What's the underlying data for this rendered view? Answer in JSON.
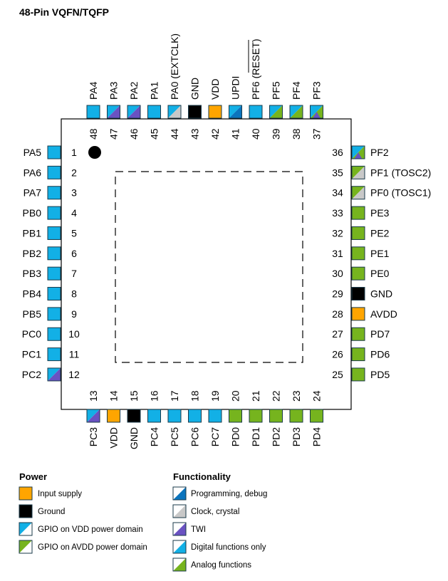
{
  "title": "48-Pin VQFN/TQFP",
  "colors": {
    "gpio_vdd": "#12b0e6",
    "twi": "#6a52c2",
    "clock": "#c8c8c8",
    "prog": "#0b74bd",
    "analog": "#76b41e",
    "supply": "#ffa500",
    "ground": "#000000",
    "white": "#ffffff"
  },
  "pins": {
    "left": [
      {
        "num": "1",
        "name": "PA5",
        "fill": [
          "gpio_vdd"
        ]
      },
      {
        "num": "2",
        "name": "PA6",
        "fill": [
          "gpio_vdd"
        ]
      },
      {
        "num": "3",
        "name": "PA7",
        "fill": [
          "gpio_vdd"
        ]
      },
      {
        "num": "4",
        "name": "PB0",
        "fill": [
          "gpio_vdd"
        ]
      },
      {
        "num": "5",
        "name": "PB1",
        "fill": [
          "gpio_vdd"
        ]
      },
      {
        "num": "6",
        "name": "PB2",
        "fill": [
          "gpio_vdd"
        ]
      },
      {
        "num": "7",
        "name": "PB3",
        "fill": [
          "gpio_vdd"
        ]
      },
      {
        "num": "8",
        "name": "PB4",
        "fill": [
          "gpio_vdd"
        ]
      },
      {
        "num": "9",
        "name": "PB5",
        "fill": [
          "gpio_vdd"
        ]
      },
      {
        "num": "10",
        "name": "PC0",
        "fill": [
          "gpio_vdd"
        ]
      },
      {
        "num": "11",
        "name": "PC1",
        "fill": [
          "gpio_vdd"
        ]
      },
      {
        "num": "12",
        "name": "PC2",
        "fill": [
          "gpio_vdd",
          "twi"
        ]
      }
    ],
    "bottom": [
      {
        "num": "13",
        "name": "PC3",
        "fill": [
          "gpio_vdd",
          "twi"
        ]
      },
      {
        "num": "14",
        "name": "VDD",
        "fill": [
          "supply"
        ]
      },
      {
        "num": "15",
        "name": "GND",
        "fill": [
          "ground"
        ]
      },
      {
        "num": "16",
        "name": "PC4",
        "fill": [
          "gpio_vdd"
        ]
      },
      {
        "num": "17",
        "name": "PC5",
        "fill": [
          "gpio_vdd"
        ]
      },
      {
        "num": "18",
        "name": "PC6",
        "fill": [
          "gpio_vdd"
        ]
      },
      {
        "num": "19",
        "name": "PC7",
        "fill": [
          "gpio_vdd"
        ]
      },
      {
        "num": "20",
        "name": "PD0",
        "fill": [
          "analog"
        ]
      },
      {
        "num": "21",
        "name": "PD1",
        "fill": [
          "analog"
        ]
      },
      {
        "num": "22",
        "name": "PD2",
        "fill": [
          "analog"
        ]
      },
      {
        "num": "23",
        "name": "PD3",
        "fill": [
          "analog"
        ]
      },
      {
        "num": "24",
        "name": "PD4",
        "fill": [
          "analog"
        ]
      }
    ],
    "right": [
      {
        "num": "36",
        "name": "PF2",
        "fill": [
          "gpio_vdd",
          "analog",
          "twi"
        ]
      },
      {
        "num": "35",
        "name": "PF1 (TOSC2)",
        "fill": [
          "analog",
          "clock"
        ]
      },
      {
        "num": "34",
        "name": "PF0 (TOSC1)",
        "fill": [
          "analog",
          "clock"
        ]
      },
      {
        "num": "33",
        "name": "PE3",
        "fill": [
          "analog"
        ]
      },
      {
        "num": "32",
        "name": "PE2",
        "fill": [
          "analog"
        ]
      },
      {
        "num": "31",
        "name": "PE1",
        "fill": [
          "analog"
        ]
      },
      {
        "num": "30",
        "name": "PE0",
        "fill": [
          "analog"
        ]
      },
      {
        "num": "29",
        "name": "GND",
        "fill": [
          "ground"
        ]
      },
      {
        "num": "28",
        "name": "AVDD",
        "fill": [
          "supply"
        ]
      },
      {
        "num": "27",
        "name": "PD7",
        "fill": [
          "analog"
        ]
      },
      {
        "num": "26",
        "name": "PD6",
        "fill": [
          "analog"
        ]
      },
      {
        "num": "25",
        "name": "PD5",
        "fill": [
          "analog"
        ]
      }
    ],
    "top": [
      {
        "num": "48",
        "name": "PA4",
        "fill": [
          "gpio_vdd"
        ]
      },
      {
        "num": "47",
        "name": "PA3",
        "fill": [
          "gpio_vdd",
          "twi"
        ]
      },
      {
        "num": "46",
        "name": "PA2",
        "fill": [
          "gpio_vdd",
          "twi"
        ]
      },
      {
        "num": "45",
        "name": "PA1",
        "fill": [
          "gpio_vdd"
        ]
      },
      {
        "num": "44",
        "name": "PA0 (EXTCLK)",
        "fill": [
          "gpio_vdd",
          "clock"
        ]
      },
      {
        "num": "43",
        "name": "GND",
        "fill": [
          "ground"
        ]
      },
      {
        "num": "42",
        "name": "VDD",
        "fill": [
          "supply"
        ]
      },
      {
        "num": "41",
        "name": "UPDI",
        "fill": [
          "gpio_vdd",
          "prog"
        ]
      },
      {
        "num": "40",
        "name": "PF6 (RESET)",
        "fill": [
          "gpio_vdd"
        ],
        "overline": "RESET"
      },
      {
        "num": "39",
        "name": "PF5",
        "fill": [
          "gpio_vdd",
          "analog"
        ]
      },
      {
        "num": "38",
        "name": "PF4",
        "fill": [
          "gpio_vdd",
          "analog"
        ]
      },
      {
        "num": "37",
        "name": "PF3",
        "fill": [
          "gpio_vdd",
          "analog",
          "twi"
        ]
      }
    ]
  },
  "legend": {
    "power": {
      "heading": "Power",
      "items": [
        {
          "label": "Input supply",
          "fill": [
            "supply"
          ]
        },
        {
          "label": "Ground",
          "fill": [
            "ground"
          ]
        },
        {
          "label": "GPIO on VDD power domain",
          "fill": [
            "gpio_vdd",
            "white"
          ]
        },
        {
          "label": "GPIO on AVDD power domain",
          "fill": [
            "analog",
            "white"
          ]
        }
      ]
    },
    "functionality": {
      "heading": "Functionality",
      "items": [
        {
          "label": "Programming, debug",
          "fill": [
            "white",
            "prog"
          ]
        },
        {
          "label": "Clock, crystal",
          "fill": [
            "white",
            "clock"
          ]
        },
        {
          "label": "TWI",
          "fill": [
            "white",
            "twi"
          ]
        },
        {
          "label": "Digital functions only",
          "fill": [
            "white",
            "gpio_vdd"
          ]
        },
        {
          "label": "Analog functions",
          "fill": [
            "white",
            "analog"
          ]
        }
      ]
    }
  }
}
